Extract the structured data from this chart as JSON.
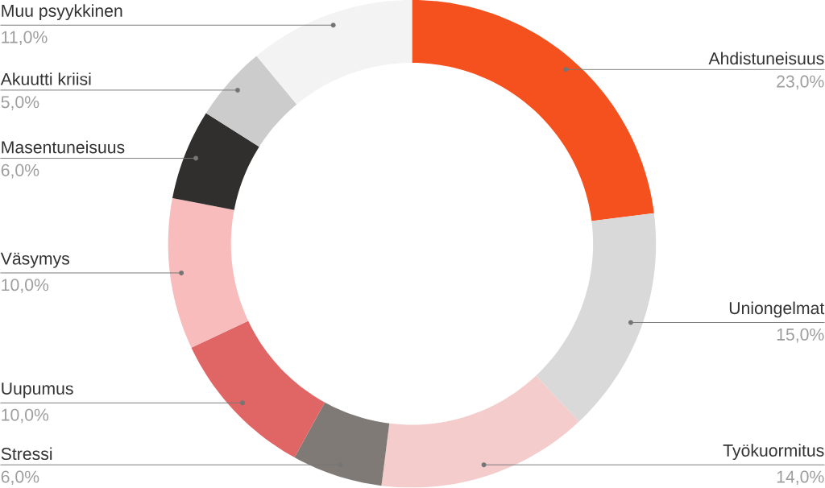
{
  "chart_data": {
    "type": "donut",
    "categories": [
      "Ahdistuneisuus",
      "Uniongelmat",
      "Työkuormitus",
      "Stressi",
      "Uupumus",
      "Väsymys",
      "Masentuneisuus",
      "Akuutti kriisi",
      "Muu psyykkinen"
    ],
    "values": [
      23,
      15,
      14,
      6,
      10,
      10,
      6,
      5,
      11
    ],
    "value_labels": [
      "23,0%",
      "15,0%",
      "14,0%",
      "6,0%",
      "10,0%",
      "10,0%",
      "6,0%",
      "5,0%",
      "11,0%"
    ],
    "colors": [
      "#f4511e",
      "#d9d9d9",
      "#f4cccc",
      "#7f7a76",
      "#e06666",
      "#f9bcbc",
      "#312f2e",
      "#cccccc",
      "#f3f3f3"
    ]
  }
}
